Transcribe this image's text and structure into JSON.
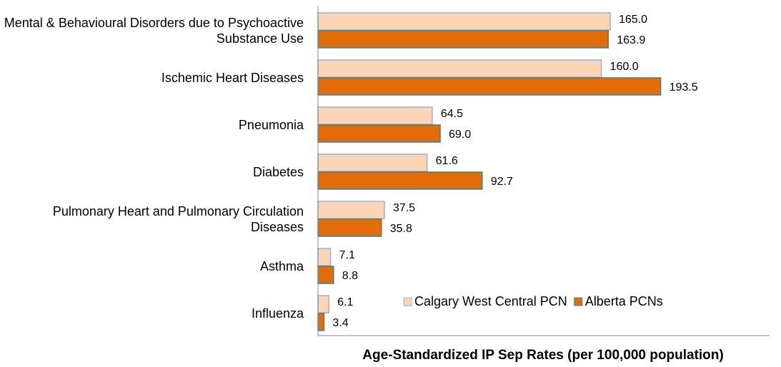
{
  "chart_data": {
    "type": "hbar",
    "xlabel": "Age-Standardized IP Sep Rates (per 100,000 population)",
    "categories": [
      "Mental & Behavioural Disorders due to Psychoactive Substance Use",
      "Ischemic Heart Diseases",
      "Pneumonia",
      "Diabetes",
      "Pulmonary Heart and Pulmonary Circulation Diseases",
      "Asthma",
      "Influenza"
    ],
    "series": [
      {
        "name": "Calgary West Central PCN",
        "color": "#fbd5b5",
        "edge": "#8eb4e3",
        "values": [
          165.0,
          160.0,
          64.5,
          61.6,
          37.5,
          7.1,
          6.1
        ],
        "value_labels": [
          "165.0",
          "160.0",
          "64.5",
          "61.6",
          "37.5",
          "7.1",
          "6.1"
        ]
      },
      {
        "name": "Alberta PCNs",
        "color": "#e36c09",
        "edge": "#31859c",
        "values": [
          163.9,
          193.5,
          69.0,
          92.7,
          35.8,
          8.8,
          3.4
        ],
        "value_labels": [
          "163.9",
          "193.5",
          "69.0",
          "92.7",
          "35.8",
          "8.8",
          "3.4"
        ]
      }
    ],
    "xlim": [
      0,
      255
    ],
    "legend": "lower right"
  }
}
